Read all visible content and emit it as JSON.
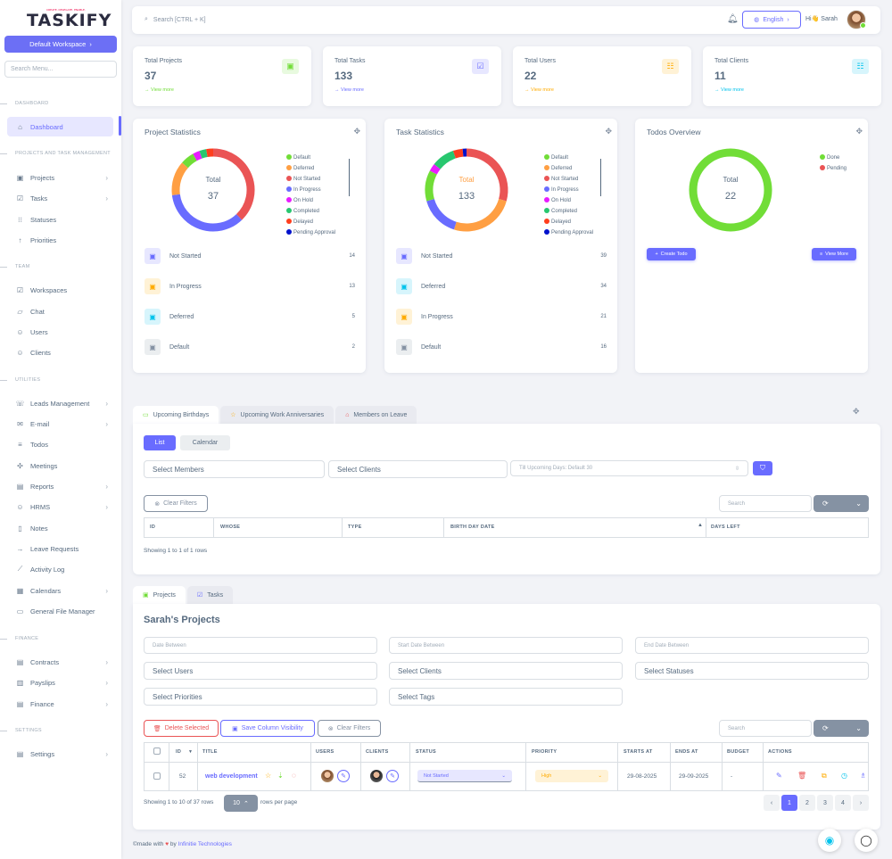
{
  "app": {
    "logo": "TASKIFY",
    "tagline": "CREATE. DELEGATE. ENABLE."
  },
  "sidebar": {
    "workspace": "Default Workspace",
    "search_placeholder": "Search Menu...",
    "sections": {
      "dashboard": "DASHBOARD",
      "projects": "PROJECTS AND TASK MANAGEMENT",
      "team": "TEAM",
      "utilities": "UTILITIES",
      "finance": "FINANCE",
      "settings": "SETTINGS"
    },
    "items": {
      "dashboard": "Dashboard",
      "projects": "Projects",
      "tasks": "Tasks",
      "statuses": "Statuses",
      "priorities": "Priorities",
      "workspaces": "Workspaces",
      "chat": "Chat",
      "users": "Users",
      "clients": "Clients",
      "leads": "Leads Management",
      "email": "E-mail",
      "todos": "Todos",
      "meetings": "Meetings",
      "reports": "Reports",
      "hrms": "HRMS",
      "notes": "Notes",
      "leave": "Leave Requests",
      "activity": "Activity Log",
      "calendars": "Calendars",
      "files": "General File Manager",
      "contracts": "Contracts",
      "payslips": "Payslips",
      "finance": "Finance",
      "settings": "Settings"
    }
  },
  "topbar": {
    "search_placeholder": "Search [CTRL + K]",
    "language": "English",
    "greeting": "Hi👋 Sarah"
  },
  "stats": [
    {
      "label": "Total Projects",
      "value": "37",
      "link": "View more",
      "color": "#71dd37",
      "bg": "#e8fadf",
      "icon": "briefcase-icon"
    },
    {
      "label": "Total Tasks",
      "value": "133",
      "link": "View more",
      "color": "#696cff",
      "bg": "#e7e7ff",
      "icon": "clipboard-check-icon"
    },
    {
      "label": "Total Users",
      "value": "22",
      "link": "View more",
      "color": "#ffab00",
      "bg": "#fff2d6",
      "icon": "user-list-icon"
    },
    {
      "label": "Total Clients",
      "value": "11",
      "link": "View more",
      "color": "#03c3ec",
      "bg": "#d7f5fc",
      "icon": "client-list-icon"
    }
  ],
  "project_stats": {
    "title": "Project Statistics",
    "center_label": "Total",
    "center_value": "37",
    "legend": [
      {
        "name": "Default",
        "color": "#71dd37"
      },
      {
        "name": "Deferred",
        "color": "#ff9f43"
      },
      {
        "name": "Not Started",
        "color": "#ea5455"
      },
      {
        "name": "In Progress",
        "color": "#696cff"
      },
      {
        "name": "On Hold",
        "color": "#e81cff"
      },
      {
        "name": "Completed",
        "color": "#28c76f"
      },
      {
        "name": "Delayed",
        "color": "#ff3e1d"
      },
      {
        "name": "Pending Approval",
        "color": "#0011cc"
      }
    ],
    "rows": [
      {
        "label": "Not Started",
        "count": "14",
        "color": "#696cff",
        "bg": "#e7e7ff"
      },
      {
        "label": "In Progress",
        "count": "13",
        "color": "#ffab00",
        "bg": "#fff2d6"
      },
      {
        "label": "Deferred",
        "count": "5",
        "color": "#03c3ec",
        "bg": "#d7f5fc"
      },
      {
        "label": "Default",
        "count": "2",
        "color": "#8592a3",
        "bg": "#ebeef0"
      }
    ]
  },
  "task_stats": {
    "title": "Task Statistics",
    "center_label": "Total",
    "center_value": "133",
    "legend": [
      {
        "name": "Default",
        "color": "#71dd37"
      },
      {
        "name": "Deferred",
        "color": "#ff9f43"
      },
      {
        "name": "Not Started",
        "color": "#ea5455"
      },
      {
        "name": "In Progress",
        "color": "#696cff"
      },
      {
        "name": "On Hold",
        "color": "#e81cff"
      },
      {
        "name": "Completed",
        "color": "#28c76f"
      },
      {
        "name": "Delayed",
        "color": "#ff3e1d"
      },
      {
        "name": "Pending Approval",
        "color": "#0011cc"
      }
    ],
    "rows": [
      {
        "label": "Not Started",
        "count": "39",
        "color": "#696cff",
        "bg": "#e7e7ff"
      },
      {
        "label": "Deferred",
        "count": "34",
        "color": "#03c3ec",
        "bg": "#d7f5fc"
      },
      {
        "label": "In Progress",
        "count": "21",
        "color": "#ffab00",
        "bg": "#fff2d6"
      },
      {
        "label": "Default",
        "count": "16",
        "color": "#8592a3",
        "bg": "#ebeef0"
      }
    ]
  },
  "todos": {
    "title": "Todos Overview",
    "center_label": "Total",
    "center_value": "22",
    "legend": [
      {
        "name": "Done",
        "color": "#71dd37"
      },
      {
        "name": "Pending",
        "color": "#ea5455"
      }
    ],
    "create": "Create Todo",
    "view": "View More"
  },
  "chart_data": [
    {
      "type": "pie",
      "title": "Project Statistics",
      "categories": [
        "Not Started",
        "In Progress",
        "Deferred",
        "Default",
        "On Hold",
        "Completed",
        "Delayed",
        "Pending Approval"
      ],
      "values": [
        14,
        13,
        5,
        2,
        1,
        1,
        1,
        0
      ],
      "colors": [
        "#ea5455",
        "#696cff",
        "#ff9f43",
        "#71dd37",
        "#e81cff",
        "#28c76f",
        "#ff3e1d",
        "#0011cc"
      ]
    },
    {
      "type": "pie",
      "title": "Task Statistics",
      "categories": [
        "Not Started",
        "Deferred",
        "In Progress",
        "Default",
        "On Hold",
        "Completed",
        "Delayed",
        "Pending Approval"
      ],
      "values": [
        39,
        34,
        21,
        16,
        4,
        12,
        5,
        2
      ],
      "colors": [
        "#ea5455",
        "#ff9f43",
        "#696cff",
        "#71dd37",
        "#e81cff",
        "#28c76f",
        "#ff3e1d",
        "#0011cc"
      ]
    },
    {
      "type": "pie",
      "title": "Todos Overview",
      "categories": [
        "Done",
        "Pending"
      ],
      "values": [
        22,
        0
      ],
      "colors": [
        "#71dd37",
        "#ea5455"
      ]
    }
  ],
  "birthdays": {
    "tabs": [
      "Upcoming Birthdays",
      "Upcoming Work Anniversaries",
      "Members on Leave"
    ],
    "views": [
      "List",
      "Calendar"
    ],
    "select_members": "Select Members",
    "select_clients": "Select Clients",
    "days_placeholder": "Till Upcoming Days: Default 30",
    "clear_filters": "Clear Filters",
    "search": "Search",
    "columns": [
      "ID",
      "WHOSE",
      "TYPE",
      "BIRTH DAY DATE",
      "DAYS LEFT"
    ],
    "showing": "Showing 1 to 1 of 1 rows"
  },
  "projects": {
    "tabs": [
      "Projects",
      "Tasks"
    ],
    "title": "Sarah's Projects",
    "date_between": "Date Between",
    "start_between": "Start Date Between",
    "end_between": "End Date Between",
    "select_users": "Select Users",
    "select_clients": "Select Clients",
    "select_statuses": "Select Statuses",
    "select_priorities": "Select Priorities",
    "select_tags": "Select Tags",
    "delete_selected": "Delete Selected",
    "save_visibility": "Save Column Visibility",
    "clear_filters": "Clear Filters",
    "search": "Search",
    "columns": [
      "ID",
      "TITLE",
      "USERS",
      "CLIENTS",
      "STATUS",
      "PRIORITY",
      "STARTS AT",
      "ENDS AT",
      "BUDGET",
      "ACTIONS"
    ],
    "row": {
      "id": "52",
      "title": "web development",
      "status": "Not Started",
      "priority": "High",
      "starts": "29-08-2025",
      "ends": "29-09-2025",
      "budget": "-"
    },
    "showing": "Showing 1 to 10 of 37 rows",
    "per_page": "10",
    "rows_per_page": "rows per page",
    "pages": [
      "‹",
      "1",
      "2",
      "3",
      "4",
      "›"
    ]
  },
  "footer": {
    "made": "©made with",
    "by": "by",
    "company": "Infinitie Technologies"
  }
}
